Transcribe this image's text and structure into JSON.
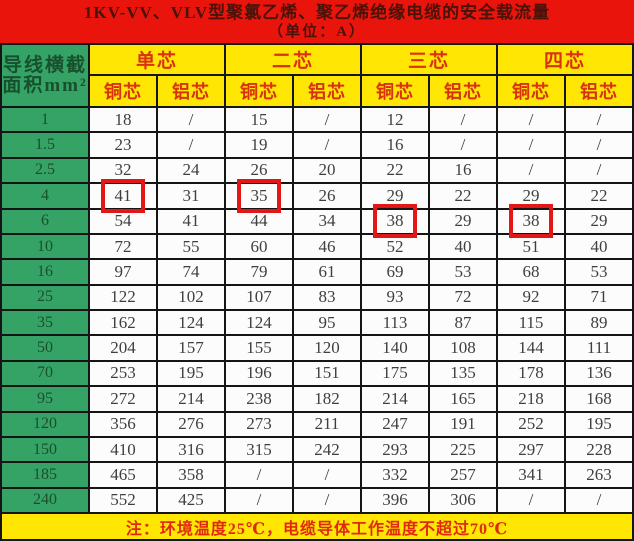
{
  "title": {
    "line1": "1KV-VV、VLV型聚氯乙烯、聚乙烯绝缘电缆的安全载流量",
    "line2": "（单位：A）"
  },
  "header": {
    "row_label_line1": "导线横截",
    "row_label_line2": "面积mm²",
    "groups": [
      "单芯",
      "二芯",
      "三芯",
      "四芯"
    ],
    "sub_columns": [
      "铜芯",
      "铝芯",
      "铜芯",
      "铝芯",
      "铜芯",
      "铝芯",
      "铜芯",
      "铝芯"
    ]
  },
  "chart_data": {
    "type": "table",
    "title": "1KV-VV、VLV型聚氯乙烯、聚乙烯绝缘电缆的安全载流量（单位：A）",
    "row_header": "导线横截面积mm²",
    "column_groups": [
      "单芯",
      "二芯",
      "三芯",
      "四芯"
    ],
    "sub_columns_per_group": [
      "铜芯",
      "铝芯"
    ],
    "columns": [
      "单芯铜芯",
      "单芯铝芯",
      "二芯铜芯",
      "二芯铝芯",
      "三芯铜芯",
      "三芯铝芯",
      "四芯铜芯",
      "四芯铝芯"
    ],
    "rows": [
      {
        "label": "1",
        "cells": [
          "18",
          "/",
          "15",
          "/",
          "12",
          "/",
          "/",
          "/"
        ]
      },
      {
        "label": "1.5",
        "cells": [
          "23",
          "/",
          "19",
          "/",
          "16",
          "/",
          "/",
          "/"
        ]
      },
      {
        "label": "2.5",
        "cells": [
          "32",
          "24",
          "26",
          "20",
          "22",
          "16",
          "/",
          "/"
        ]
      },
      {
        "label": "4",
        "cells": [
          "41",
          "31",
          "35",
          "26",
          "29",
          "22",
          "29",
          "22"
        ],
        "highlight_columns": [
          0,
          2
        ]
      },
      {
        "label": "6",
        "cells": [
          "54",
          "41",
          "44",
          "34",
          "38",
          "29",
          "38",
          "29"
        ],
        "highlight_columns": [
          4,
          6
        ]
      },
      {
        "label": "10",
        "cells": [
          "72",
          "55",
          "60",
          "46",
          "52",
          "40",
          "51",
          "40"
        ]
      },
      {
        "label": "16",
        "cells": [
          "97",
          "74",
          "79",
          "61",
          "69",
          "53",
          "68",
          "53"
        ]
      },
      {
        "label": "25",
        "cells": [
          "122",
          "102",
          "107",
          "83",
          "93",
          "72",
          "92",
          "71"
        ]
      },
      {
        "label": "35",
        "cells": [
          "162",
          "124",
          "124",
          "95",
          "113",
          "87",
          "115",
          "89"
        ]
      },
      {
        "label": "50",
        "cells": [
          "204",
          "157",
          "155",
          "120",
          "140",
          "108",
          "144",
          "111"
        ]
      },
      {
        "label": "70",
        "cells": [
          "253",
          "195",
          "196",
          "151",
          "175",
          "135",
          "178",
          "136"
        ]
      },
      {
        "label": "95",
        "cells": [
          "272",
          "214",
          "238",
          "182",
          "214",
          "165",
          "218",
          "168"
        ]
      },
      {
        "label": "120",
        "cells": [
          "356",
          "276",
          "273",
          "211",
          "247",
          "191",
          "252",
          "195"
        ]
      },
      {
        "label": "150",
        "cells": [
          "410",
          "316",
          "315",
          "242",
          "293",
          "225",
          "297",
          "228"
        ]
      },
      {
        "label": "185",
        "cells": [
          "465",
          "358",
          "/",
          "/",
          "332",
          "257",
          "341",
          "263"
        ]
      },
      {
        "label": "240",
        "cells": [
          "552",
          "425",
          "/",
          "/",
          "396",
          "306",
          "/",
          "/"
        ]
      }
    ],
    "highlighted_cells": [
      {
        "row": "4",
        "column": "单芯铜芯",
        "value": "41"
      },
      {
        "row": "4",
        "column": "二芯铜芯",
        "value": "35"
      },
      {
        "row": "6",
        "column": "三芯铜芯",
        "value": "38"
      },
      {
        "row": "6",
        "column": "四芯铜芯",
        "value": "38"
      }
    ],
    "note": "注：环境温度25℃，电缆导体工作温度不超过70℃"
  },
  "footer": {
    "note": "注：环境温度25℃，电缆导体工作温度不超过70℃"
  },
  "colors": {
    "title_bg": "#e9150d",
    "title_text": "#4a1208",
    "header_bg": "#ffe603",
    "header_text": "#d8330e",
    "row_label_bg": "#35a366",
    "row_label_text": "#1a4f2e",
    "cell_bg": "#fcfcfc",
    "cell_text": "#3f3f3f",
    "grid_border": "#151515",
    "highlight_box": "#e21717",
    "footer_bg": "#ffe603",
    "footer_text": "#e02a10"
  }
}
